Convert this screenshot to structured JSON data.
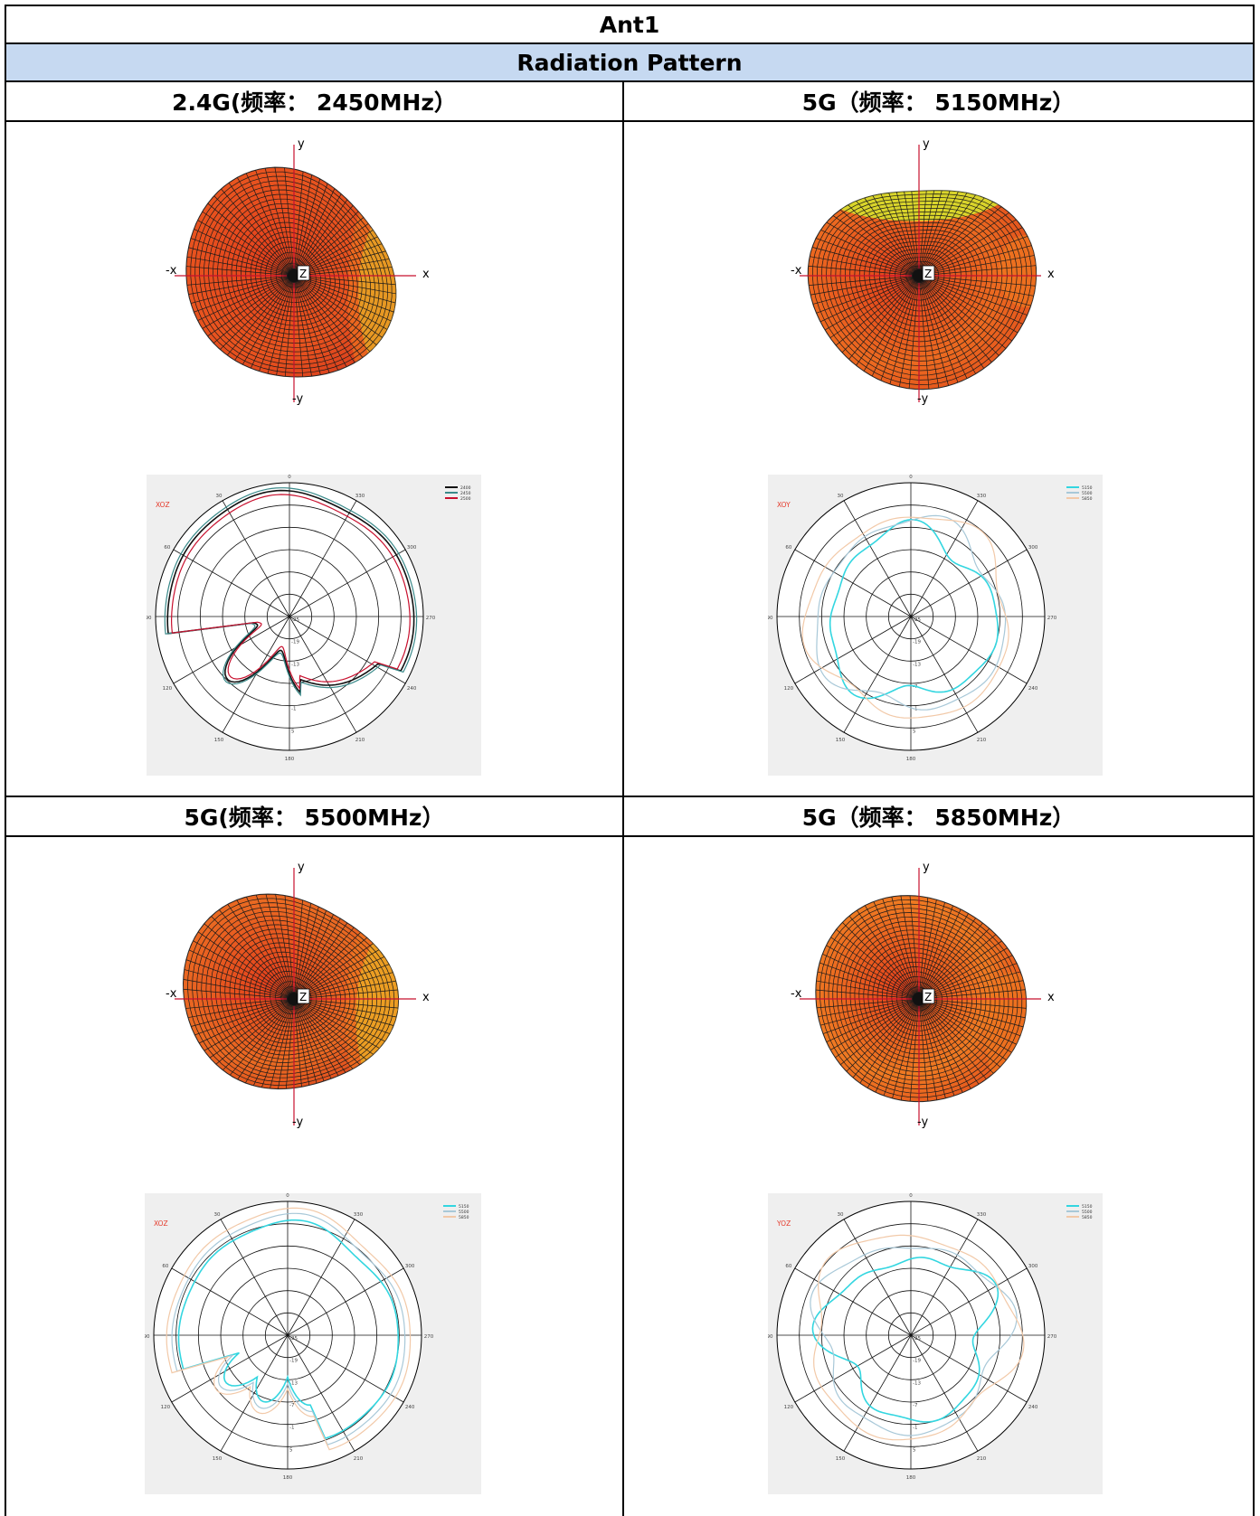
{
  "table": {
    "title": "Ant1",
    "subtitle": "Radiation Pattern",
    "cells": [
      {
        "header": "2.4G(频率： 2450MHz）",
        "pattern3d": {
          "axes": {
            "y": "y",
            "neg_y": "-y",
            "x": "x",
            "neg_x": "-x",
            "z": "Z"
          },
          "colors": {
            "main": "#e4401c",
            "warm": "#f07820",
            "hot": "#e8e02a",
            "mesh": "#1a1a1a"
          }
        },
        "polar": {
          "plane": "XOZ",
          "angle_labels": [
            "0",
            "30",
            "60",
            "90",
            "120",
            "150",
            "180",
            "210",
            "240",
            "270",
            "300",
            "330"
          ],
          "ring_labels": [
            "-25",
            "-19",
            "-13",
            "-7",
            "-1",
            "5"
          ],
          "legend": [
            {
              "label": "2400",
              "color": "#111111"
            },
            {
              "label": "2450",
              "color": "#3a8a8a"
            },
            {
              "label": "2500",
              "color": "#c8102e"
            }
          ]
        }
      },
      {
        "header": "5G（频率： 5150MHz）",
        "pattern3d": {
          "axes": {
            "y": "y",
            "neg_y": "-y",
            "x": "x",
            "neg_x": "-x",
            "z": "Z"
          },
          "colors": {
            "main": "#e4401c",
            "warm": "#f07820",
            "hot": "#e8e02a",
            "mesh": "#1a1a1a"
          }
        },
        "polar": {
          "plane": "XOY",
          "angle_labels": [
            "0",
            "30",
            "60",
            "90",
            "120",
            "150",
            "180",
            "210",
            "240",
            "270",
            "300",
            "330"
          ],
          "ring_labels": [
            "-25",
            "-19",
            "-13",
            "-7",
            "-1",
            "5"
          ],
          "legend": [
            {
              "label": "5150",
              "color": "#33d6e0"
            },
            {
              "label": "5500",
              "color": "#a8c8d8"
            },
            {
              "label": "5850",
              "color": "#f2c9a8"
            }
          ]
        }
      },
      {
        "header": "5G(频率： 5500MHz）",
        "pattern3d": {
          "axes": {
            "y": "y",
            "neg_y": "-y",
            "x": "x",
            "neg_x": "-x",
            "z": "Z"
          },
          "colors": {
            "main": "#e4401c",
            "warm": "#f07820",
            "hot": "#e8e02a",
            "mesh": "#1a1a1a"
          }
        },
        "polar": {
          "plane": "XOZ",
          "angle_labels": [
            "0",
            "30",
            "60",
            "90",
            "120",
            "150",
            "180",
            "210",
            "240",
            "270",
            "300",
            "330"
          ],
          "ring_labels": [
            "-25",
            "-19",
            "-13",
            "-7",
            "-1",
            "5"
          ],
          "legend": [
            {
              "label": "5150",
              "color": "#33d6e0"
            },
            {
              "label": "5500",
              "color": "#a8c8d8"
            },
            {
              "label": "5850",
              "color": "#f2c9a8"
            }
          ]
        }
      },
      {
        "header": "5G（频率： 5850MHz）",
        "pattern3d": {
          "axes": {
            "y": "y",
            "neg_y": "-y",
            "x": "x",
            "neg_x": "-x",
            "z": "Z"
          },
          "colors": {
            "main": "#e4401c",
            "warm": "#f07820",
            "hot": "#e8e02a",
            "mesh": "#1a1a1a"
          }
        },
        "polar": {
          "plane": "YOZ",
          "angle_labels": [
            "0",
            "30",
            "60",
            "90",
            "120",
            "150",
            "180",
            "210",
            "240",
            "270",
            "300",
            "330"
          ],
          "ring_labels": [
            "-25",
            "-19",
            "-13",
            "-7",
            "-1",
            "5"
          ],
          "legend": [
            {
              "label": "5150",
              "color": "#33d6e0"
            },
            {
              "label": "5500",
              "color": "#a8c8d8"
            },
            {
              "label": "5850",
              "color": "#f2c9a8"
            }
          ]
        }
      }
    ]
  }
}
